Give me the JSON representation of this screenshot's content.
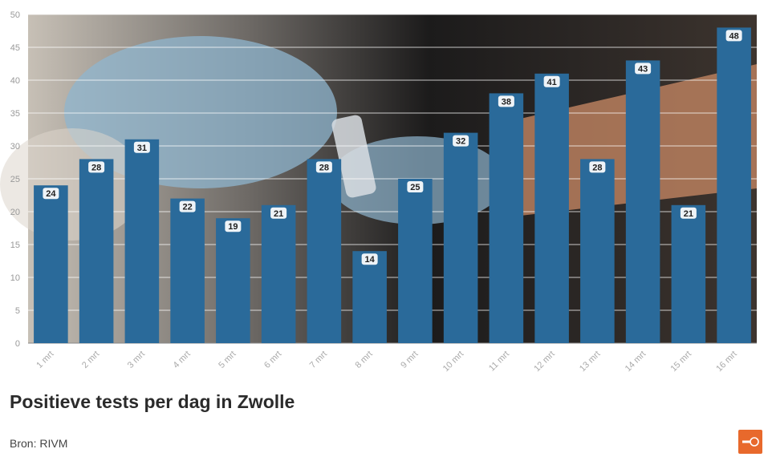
{
  "chart_data": {
    "type": "bar",
    "title": "Positieve tests per dag in Zwolle",
    "categories": [
      "1 mrt",
      "2 mrt",
      "3 mrt",
      "4 mrt",
      "5 mrt",
      "6 mrt",
      "7 mrt",
      "8 mrt",
      "9 mrt",
      "10 mrt",
      "11 mrt",
      "12 mrt",
      "13 mrt",
      "14 mrt",
      "15 mrt",
      "16 mrt"
    ],
    "values": [
      24,
      28,
      31,
      22,
      19,
      21,
      28,
      14,
      25,
      32,
      38,
      41,
      28,
      43,
      21,
      48
    ],
    "ylim": [
      0,
      50
    ],
    "yticks": [
      0,
      5,
      10,
      15,
      20,
      25,
      30,
      35,
      40,
      45,
      50
    ],
    "xlabel": "",
    "ylabel": "",
    "grid": true,
    "bar_color": "#2a6a9a",
    "data_labels": true
  },
  "footer": {
    "source": "Bron: RIVM"
  },
  "colors": {
    "bar": "#2a6a9a",
    "logo": "#e8692c"
  }
}
